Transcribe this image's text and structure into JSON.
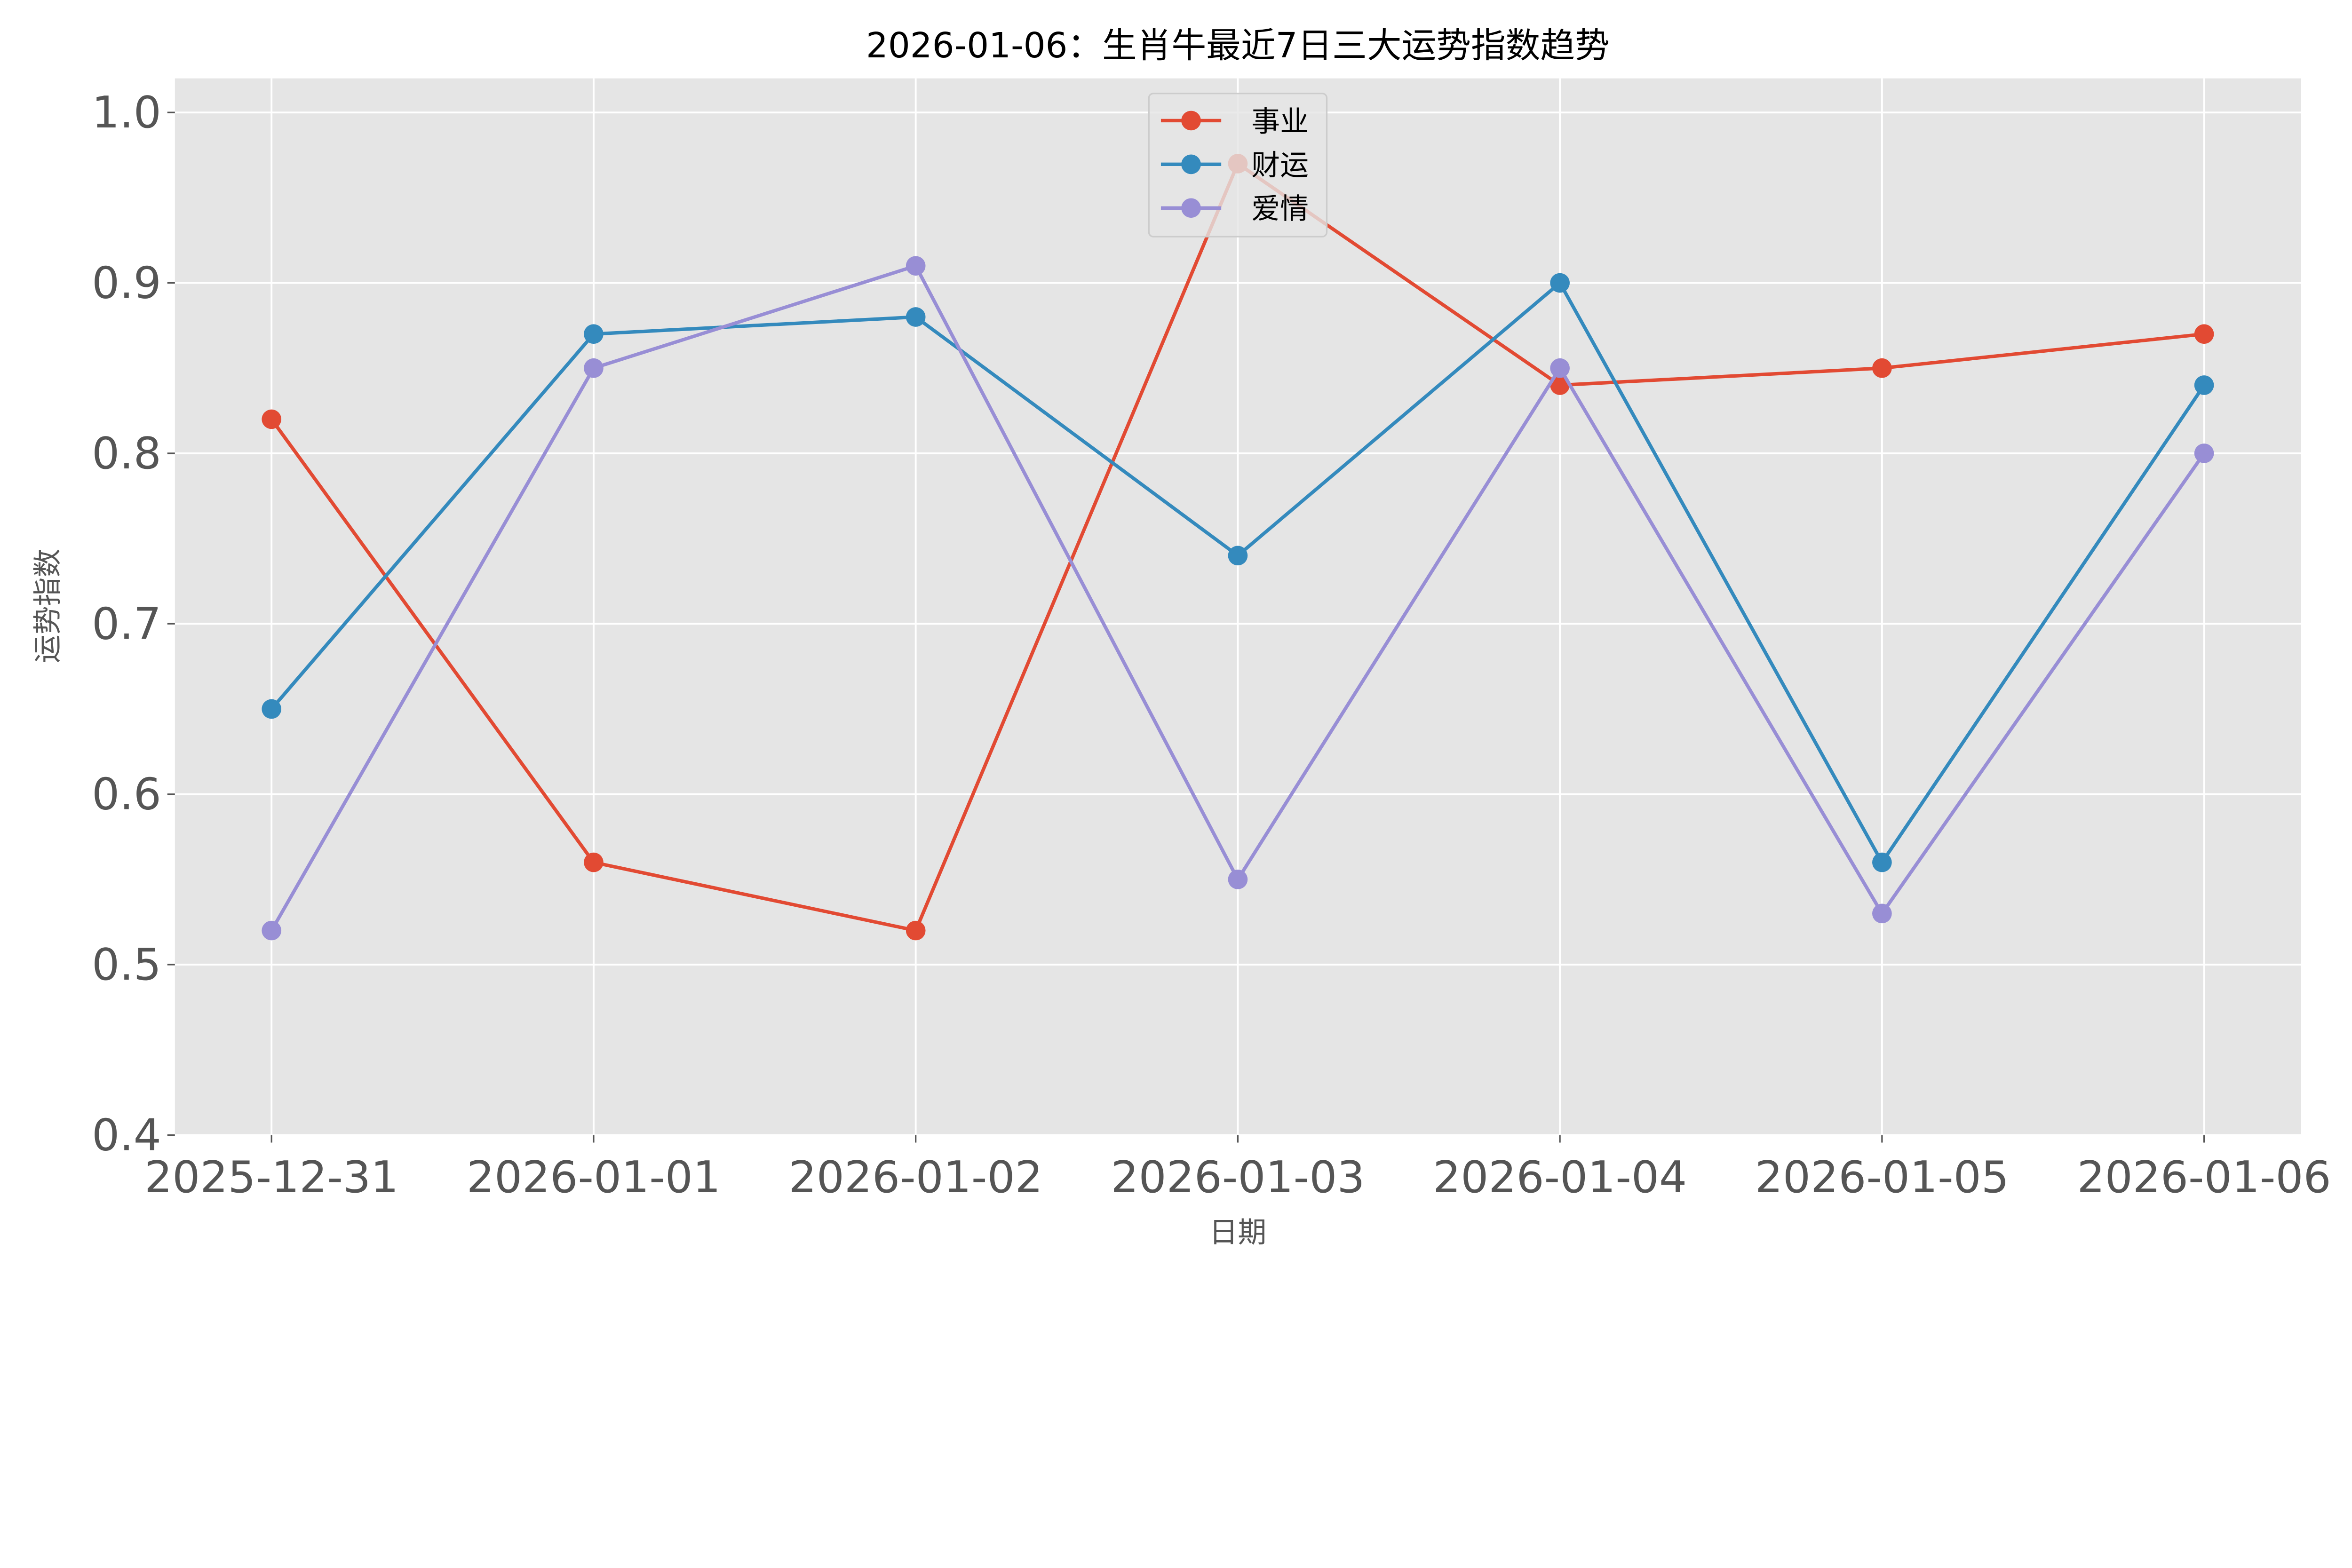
{
  "chart_data": {
    "type": "line",
    "title": "2026-01-06：生肖牛最近7日三大运势指数趋势",
    "xlabel": "日期",
    "ylabel": "运势指数",
    "categories": [
      "2025-12-31",
      "2026-01-01",
      "2026-01-02",
      "2026-01-03",
      "2026-01-04",
      "2026-01-05",
      "2026-01-06"
    ],
    "ylim": [
      0.4,
      1.02
    ],
    "yticks": [
      0.4,
      0.5,
      0.6,
      0.7,
      0.8,
      0.9,
      1.0
    ],
    "ytick_labels": [
      "0.4",
      "0.5",
      "0.6",
      "0.7",
      "0.8",
      "0.9",
      "1.0"
    ],
    "grid": true,
    "legend_position": "top-center",
    "background": "#e5e5e5",
    "series": [
      {
        "name": "事业",
        "color": "#e24a33",
        "marker": "circle",
        "values": [
          0.82,
          0.56,
          0.52,
          0.97,
          0.84,
          0.85,
          0.87
        ]
      },
      {
        "name": "财运",
        "color": "#348abd",
        "marker": "circle",
        "values": [
          0.65,
          0.87,
          0.88,
          0.74,
          0.9,
          0.56,
          0.84
        ]
      },
      {
        "name": "爱情",
        "color": "#988ed5",
        "marker": "circle",
        "values": [
          0.52,
          0.85,
          0.91,
          0.55,
          0.85,
          0.53,
          0.8
        ]
      }
    ]
  }
}
